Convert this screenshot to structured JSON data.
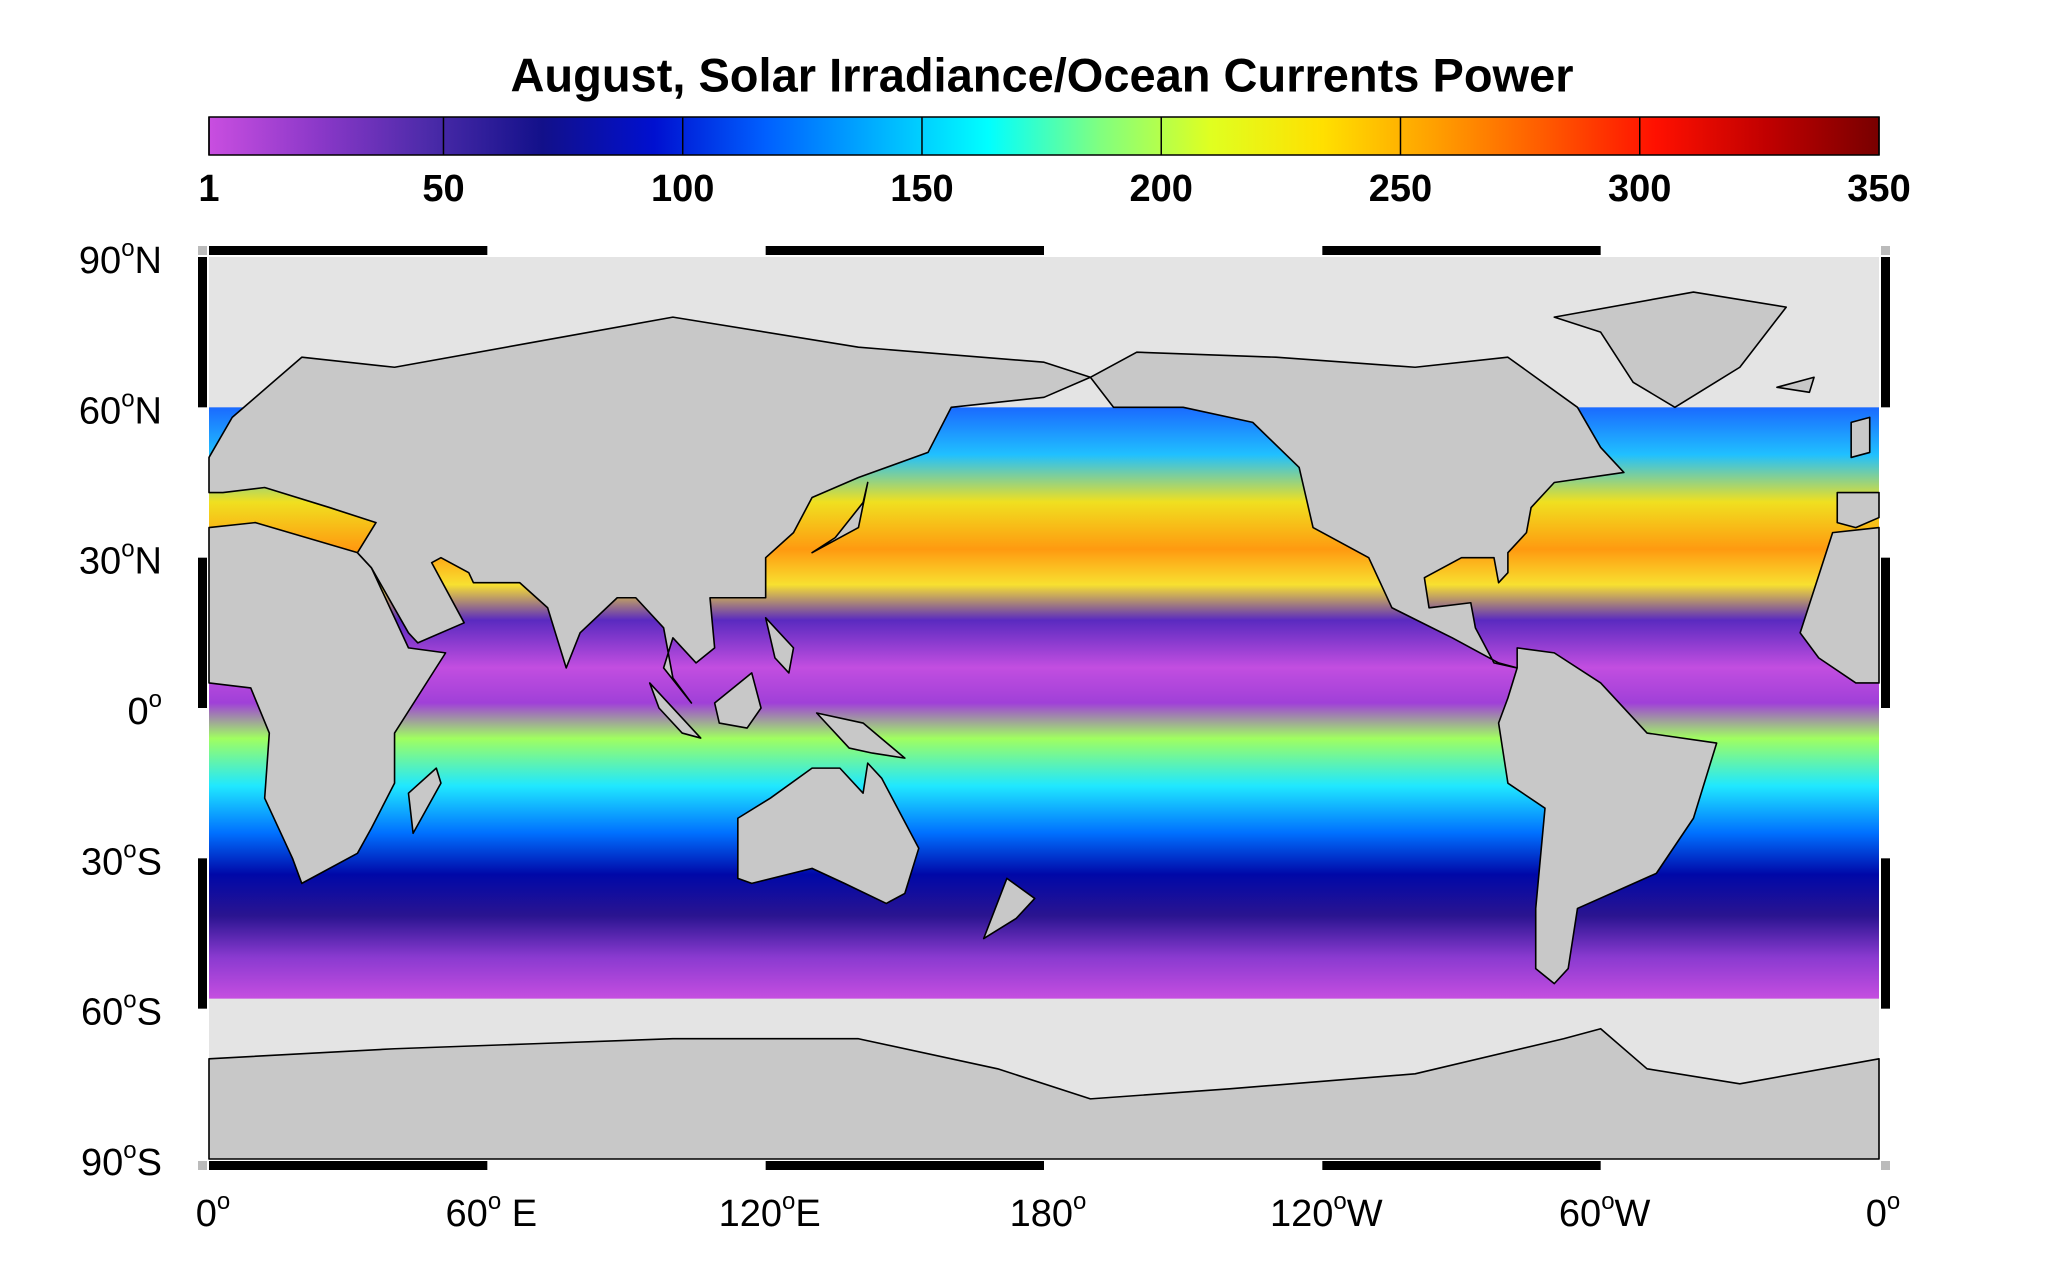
{
  "map": {
    "title": "August, Solar Irradiance/Ocean Currents Power",
    "colorbar": {
      "range": [
        1,
        350
      ],
      "ticks": [
        1,
        50,
        100,
        150,
        200,
        250,
        300,
        350
      ],
      "colors": [
        "#c94ee0",
        "#8a38c8",
        "#4a2aa8",
        "#12108a",
        "#0010d0",
        "#0060ff",
        "#00b0ff",
        "#00ffff",
        "#80ff80",
        "#e0ff20",
        "#ffe000",
        "#ffa000",
        "#ff5a00",
        "#ff1000",
        "#c00000",
        "#780000"
      ]
    },
    "lat_labels": [
      {
        "num": "90",
        "deg": "o",
        "hemi": "N"
      },
      {
        "num": "60",
        "deg": "o",
        "hemi": "N"
      },
      {
        "num": "30",
        "deg": "o",
        "hemi": "N"
      },
      {
        "num": "0",
        "deg": "o"
      },
      {
        "num": "30",
        "deg": "o",
        "hemi": "S"
      },
      {
        "num": "60",
        "deg": "o",
        "hemi": "S"
      },
      {
        "num": "90",
        "deg": "o",
        "hemi": "S"
      }
    ],
    "lon_labels": [
      {
        "num": "0",
        "deg": "o"
      },
      {
        "num": "60",
        "deg": "o",
        "hemi": " E"
      },
      {
        "num": "120",
        "deg": "o",
        "hemi": "E"
      },
      {
        "num": "180",
        "deg": "o"
      },
      {
        "num": "120",
        "deg": "o",
        "hemi": "W"
      },
      {
        "num": "60",
        "deg": "o",
        "hemi": "W"
      },
      {
        "num": "0",
        "deg": "o"
      }
    ]
  }
}
